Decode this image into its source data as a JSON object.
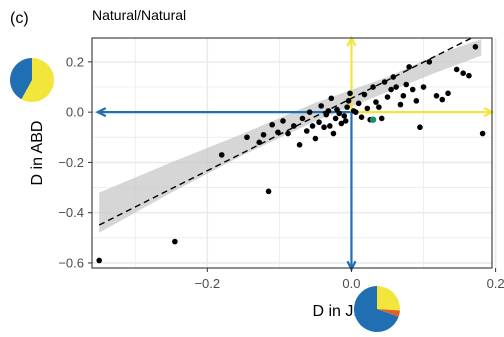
{
  "panel_label": "(c)",
  "title": "Natural/Natural",
  "chart_data": {
    "type": "scatter",
    "title": "Natural/Natural",
    "xlabel": "D in JER",
    "ylabel": "D in ABD",
    "xlim": [
      -0.36,
      0.195
    ],
    "ylim": [
      -0.62,
      0.295
    ],
    "xticks": [
      -0.2,
      0.0,
      0.2
    ],
    "xtick_labels": [
      "−0.2",
      "0.0",
      "0.2"
    ],
    "yticks": [
      -0.6,
      -0.4,
      -0.2,
      0.0,
      0.2
    ],
    "ytick_labels": [
      "−0.6",
      "−0.4",
      "−0.2",
      "0.0",
      "0.2"
    ],
    "grid": true,
    "background": "#ffffff",
    "grid_color": "#ebebeb",
    "point_color": "#000000",
    "highlight_point_color": "#1a8f6b",
    "trend_color": "#000000",
    "confidence_band_color": "#c8c8c8",
    "points": [
      {
        "x": -0.35,
        "y": -0.59
      },
      {
        "x": -0.245,
        "y": -0.515
      },
      {
        "x": -0.115,
        "y": -0.315
      },
      {
        "x": -0.18,
        "y": -0.17
      },
      {
        "x": -0.145,
        "y": -0.1
      },
      {
        "x": -0.128,
        "y": -0.12
      },
      {
        "x": -0.122,
        "y": -0.09
      },
      {
        "x": -0.11,
        "y": -0.05
      },
      {
        "x": -0.102,
        "y": -0.08
      },
      {
        "x": -0.095,
        "y": -0.035
      },
      {
        "x": -0.088,
        "y": -0.085
      },
      {
        "x": -0.08,
        "y": -0.055
      },
      {
        "x": -0.072,
        "y": -0.13
      },
      {
        "x": -0.068,
        "y": -0.025
      },
      {
        "x": -0.062,
        "y": -0.075
      },
      {
        "x": -0.058,
        "y": 0.0
      },
      {
        "x": -0.054,
        "y": -0.055
      },
      {
        "x": -0.05,
        "y": -0.105
      },
      {
        "x": -0.045,
        "y": -0.04
      },
      {
        "x": -0.042,
        "y": 0.025
      },
      {
        "x": -0.038,
        "y": -0.06
      },
      {
        "x": -0.035,
        "y": -0.01
      },
      {
        "x": -0.032,
        "y": 0.005
      },
      {
        "x": -0.03,
        "y": -0.055
      },
      {
        "x": -0.028,
        "y": 0.055
      },
      {
        "x": -0.025,
        "y": -0.085
      },
      {
        "x": -0.022,
        "y": -0.025
      },
      {
        "x": -0.02,
        "y": 0.01
      },
      {
        "x": -0.017,
        "y": -0.005
      },
      {
        "x": -0.014,
        "y": -0.045
      },
      {
        "x": -0.01,
        "y": -0.015
      },
      {
        "x": -0.006,
        "y": 0.02
      },
      {
        "x": -0.008,
        "y": -0.035
      },
      {
        "x": -0.004,
        "y": 0.045
      },
      {
        "x": -0.002,
        "y": 0.075
      },
      {
        "x": 0.003,
        "y": 0.005
      },
      {
        "x": 0.006,
        "y": 0.0
      },
      {
        "x": 0.01,
        "y": 0.035
      },
      {
        "x": 0.014,
        "y": -0.02
      },
      {
        "x": 0.018,
        "y": 0.07
      },
      {
        "x": 0.022,
        "y": 0.015
      },
      {
        "x": 0.026,
        "y": -0.03
      },
      {
        "x": 0.03,
        "y": 0.1
      },
      {
        "x": 0.034,
        "y": 0.04
      },
      {
        "x": 0.038,
        "y": 0.02
      },
      {
        "x": 0.042,
        "y": -0.025
      },
      {
        "x": 0.046,
        "y": 0.12
      },
      {
        "x": 0.05,
        "y": 0.06
      },
      {
        "x": 0.055,
        "y": 0.09
      },
      {
        "x": 0.058,
        "y": 0.14
      },
      {
        "x": 0.062,
        "y": 0.1
      },
      {
        "x": 0.068,
        "y": 0.03
      },
      {
        "x": 0.072,
        "y": 0.065
      },
      {
        "x": 0.076,
        "y": 0.11
      },
      {
        "x": 0.08,
        "y": 0.18
      },
      {
        "x": 0.085,
        "y": 0.09
      },
      {
        "x": 0.09,
        "y": 0.045
      },
      {
        "x": 0.095,
        "y": -0.06
      },
      {
        "x": 0.1,
        "y": 0.1
      },
      {
        "x": 0.108,
        "y": 0.2
      },
      {
        "x": 0.118,
        "y": 0.065
      },
      {
        "x": 0.126,
        "y": 0.05
      },
      {
        "x": 0.134,
        "y": 0.075
      },
      {
        "x": 0.146,
        "y": 0.17
      },
      {
        "x": 0.155,
        "y": 0.155
      },
      {
        "x": 0.163,
        "y": 0.145
      },
      {
        "x": 0.172,
        "y": 0.26
      },
      {
        "x": 0.182,
        "y": -0.085
      }
    ],
    "highlight_points": [
      {
        "x": 0.03,
        "y": -0.03
      }
    ],
    "trend_line": {
      "slope": 1.44,
      "intercept": 0.055,
      "style": "dashed"
    },
    "confidence_band": {
      "x": [
        -0.35,
        -0.25,
        -0.15,
        -0.05,
        0.05,
        0.12,
        0.18
      ],
      "lower": [
        -0.48,
        -0.32,
        -0.17,
        -0.035,
        0.08,
        0.16,
        0.225
      ],
      "upper": [
        -0.32,
        -0.2,
        -0.085,
        0.0375,
        0.14,
        0.23,
        0.29
      ]
    },
    "arrows": [
      {
        "from": [
          0.0,
          0.0
        ],
        "to": [
          -0.352,
          0.0
        ],
        "color": "#1f6fb2"
      },
      {
        "from": [
          0.0,
          0.0
        ],
        "to": [
          0.0,
          -0.625
        ],
        "color": "#1f6fb2"
      },
      {
        "from": [
          0.0,
          0.0
        ],
        "to": [
          0.0,
          0.295
        ],
        "color": "#f2e63c"
      },
      {
        "from": [
          0.0,
          0.0
        ],
        "to": [
          0.195,
          0.0
        ],
        "color": "#f2e63c"
      }
    ],
    "pies": [
      {
        "axis": "y",
        "slices": [
          {
            "value": 0.58,
            "color": "#f2e63c"
          },
          {
            "value": 0.42,
            "color": "#1f6fb2"
          }
        ]
      },
      {
        "axis": "x",
        "slices": [
          {
            "value": 0.26,
            "color": "#f2e63c"
          },
          {
            "value": 0.045,
            "color": "#e0602a"
          },
          {
            "value": 0.695,
            "color": "#1f6fb2"
          }
        ]
      }
    ]
  }
}
